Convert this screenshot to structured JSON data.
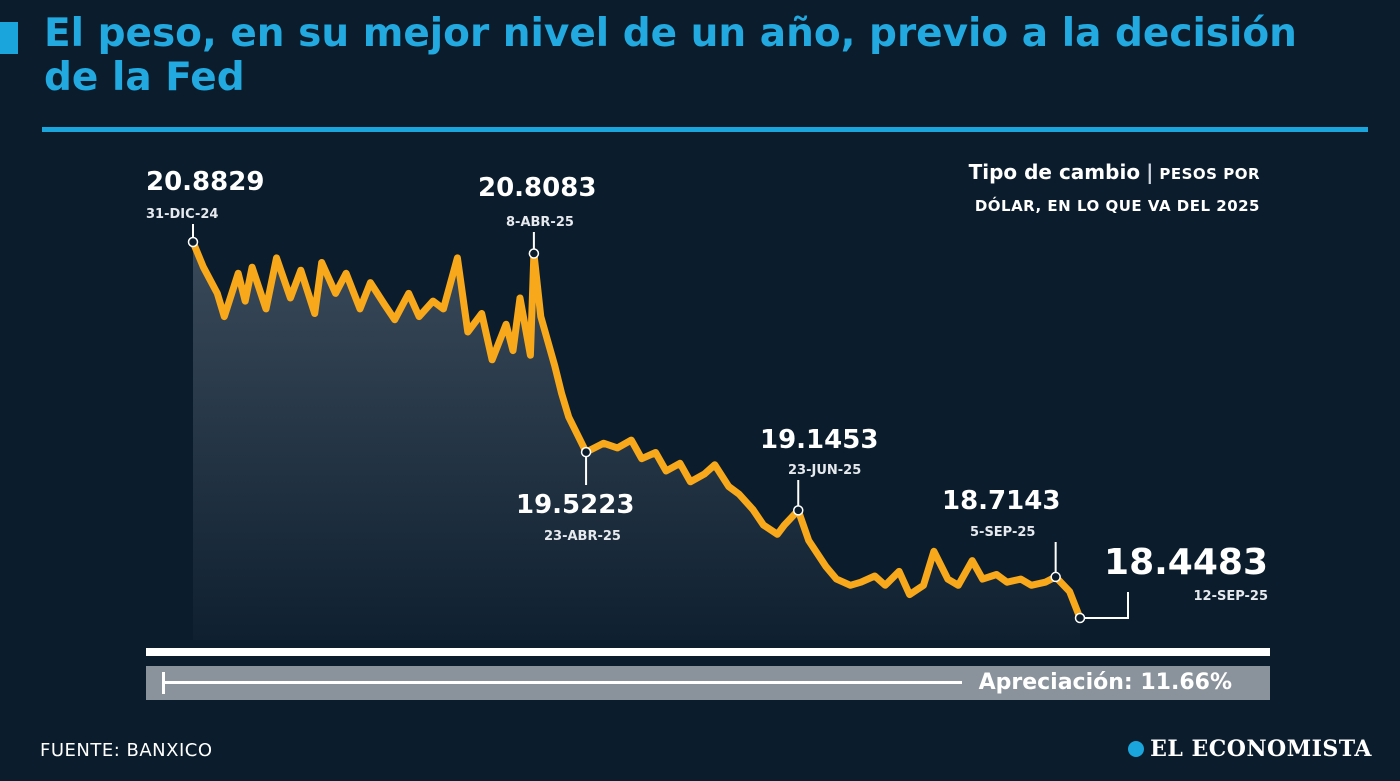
{
  "header": {
    "title": "El peso, en su mejor nivel de un año, previo a la decisión de la Fed"
  },
  "caption": {
    "main": "Tipo de cambio",
    "separator": "|",
    "sub_line1": "PESOS POR",
    "sub_line2": "DÓLAR, EN LO QUE VA DEL 2025"
  },
  "appreciation": {
    "label": "Apreciación: 11.66%",
    "value_percent": 11.66
  },
  "footer": {
    "source": "FUENTE: BANXICO",
    "brand": "EL ECONOMISTA"
  },
  "colors": {
    "background": "#0b1c2c",
    "title": "#22a9e0",
    "line": "#f7a81b",
    "area_top": "#3a4a5a",
    "area_bottom": "#0f2030"
  },
  "chart_data": {
    "type": "area",
    "title": "",
    "xlabel": "",
    "ylabel": "",
    "x_range": [
      "2024-12-31",
      "2025-09-12"
    ],
    "ylim": [
      18.2,
      21.2
    ],
    "grid": false,
    "legend": "none",
    "series": [
      {
        "values": [
          [
            "2024-12-31",
            20.8829
          ],
          [
            "2025-01-03",
            20.72
          ],
          [
            "2025-01-07",
            20.55
          ],
          [
            "2025-01-09",
            20.4
          ],
          [
            "2025-01-13",
            20.68
          ],
          [
            "2025-01-15",
            20.5
          ],
          [
            "2025-01-17",
            20.72
          ],
          [
            "2025-01-21",
            20.45
          ],
          [
            "2025-01-24",
            20.78
          ],
          [
            "2025-01-28",
            20.52
          ],
          [
            "2025-01-31",
            20.7
          ],
          [
            "2025-02-04",
            20.42
          ],
          [
            "2025-02-06",
            20.75
          ],
          [
            "2025-02-10",
            20.55
          ],
          [
            "2025-02-13",
            20.68
          ],
          [
            "2025-02-17",
            20.45
          ],
          [
            "2025-02-20",
            20.62
          ],
          [
            "2025-02-24",
            20.48
          ],
          [
            "2025-02-27",
            20.38
          ],
          [
            "2025-03-03",
            20.55
          ],
          [
            "2025-03-06",
            20.4
          ],
          [
            "2025-03-10",
            20.5
          ],
          [
            "2025-03-13",
            20.45
          ],
          [
            "2025-03-17",
            20.78
          ],
          [
            "2025-03-20",
            20.3
          ],
          [
            "2025-03-24",
            20.42
          ],
          [
            "2025-03-27",
            20.12
          ],
          [
            "2025-03-31",
            20.35
          ],
          [
            "2025-04-02",
            20.18
          ],
          [
            "2025-04-04",
            20.52
          ],
          [
            "2025-04-07",
            20.15
          ],
          [
            "2025-04-08",
            20.8083
          ],
          [
            "2025-04-10",
            20.4
          ],
          [
            "2025-04-14",
            20.08
          ],
          [
            "2025-04-16",
            19.9
          ],
          [
            "2025-04-18",
            19.75
          ],
          [
            "2025-04-23",
            19.5223
          ],
          [
            "2025-04-28",
            19.58
          ],
          [
            "2025-05-02",
            19.55
          ],
          [
            "2025-05-06",
            19.6
          ],
          [
            "2025-05-09",
            19.48
          ],
          [
            "2025-05-13",
            19.52
          ],
          [
            "2025-05-16",
            19.4
          ],
          [
            "2025-05-20",
            19.45
          ],
          [
            "2025-05-23",
            19.33
          ],
          [
            "2025-05-27",
            19.38
          ],
          [
            "2025-05-30",
            19.44
          ],
          [
            "2025-06-03",
            19.3
          ],
          [
            "2025-06-06",
            19.25
          ],
          [
            "2025-06-10",
            19.15
          ],
          [
            "2025-06-13",
            19.05
          ],
          [
            "2025-06-17",
            18.99
          ],
          [
            "2025-06-19",
            19.05
          ],
          [
            "2025-06-23",
            19.1453
          ],
          [
            "2025-06-26",
            18.95
          ],
          [
            "2025-07-01",
            18.78
          ],
          [
            "2025-07-04",
            18.7
          ],
          [
            "2025-07-08",
            18.66
          ],
          [
            "2025-07-11",
            18.68
          ],
          [
            "2025-07-15",
            18.72
          ],
          [
            "2025-07-18",
            18.66
          ],
          [
            "2025-07-22",
            18.75
          ],
          [
            "2025-07-25",
            18.6
          ],
          [
            "2025-07-29",
            18.66
          ],
          [
            "2025-08-01",
            18.88
          ],
          [
            "2025-08-05",
            18.7
          ],
          [
            "2025-08-08",
            18.66
          ],
          [
            "2025-08-12",
            18.82
          ],
          [
            "2025-08-15",
            18.7
          ],
          [
            "2025-08-19",
            18.73
          ],
          [
            "2025-08-22",
            18.68
          ],
          [
            "2025-08-26",
            18.7
          ],
          [
            "2025-08-29",
            18.66
          ],
          [
            "2025-09-02",
            18.68
          ],
          [
            "2025-09-05",
            18.7143
          ],
          [
            "2025-09-09",
            18.62
          ],
          [
            "2025-09-12",
            18.4483
          ]
        ]
      }
    ],
    "annotations": [
      {
        "date": "2024-12-31",
        "value": "20.8829",
        "label": "31-DIC-24"
      },
      {
        "date": "2025-04-08",
        "value": "20.8083",
        "label": "8-ABR-25"
      },
      {
        "date": "2025-04-23",
        "value": "19.5223",
        "label": "23-ABR-25"
      },
      {
        "date": "2025-06-23",
        "value": "19.1453",
        "label": "23-JUN-25"
      },
      {
        "date": "2025-09-05",
        "value": "18.7143",
        "label": "5-SEP-25"
      },
      {
        "date": "2025-09-12",
        "value": "18.4483",
        "label": "12-SEP-25"
      }
    ]
  }
}
